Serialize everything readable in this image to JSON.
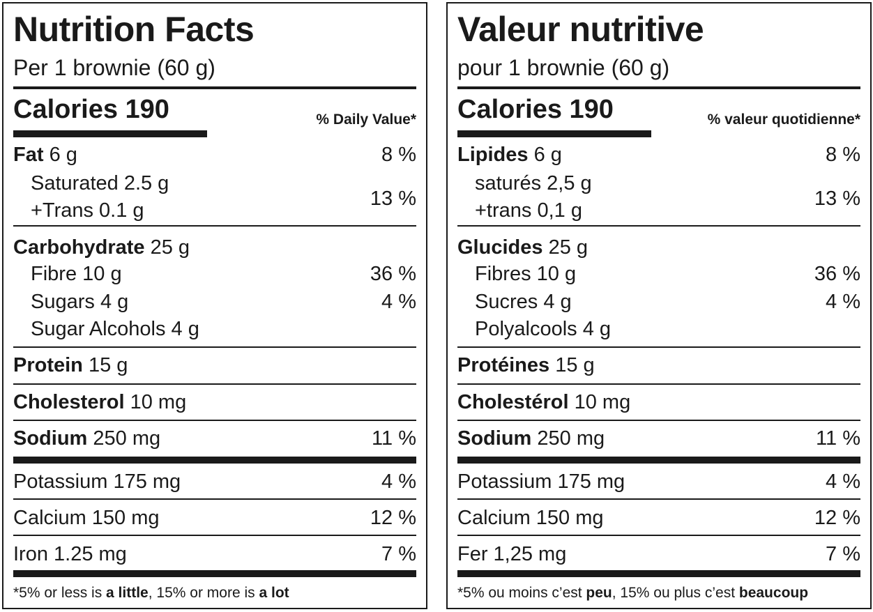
{
  "english": {
    "title": "Nutrition Facts",
    "serving": "Per 1 brownie (60 g)",
    "calories_label": "Calories",
    "calories_value": "190",
    "daily_value_header": "% Daily Value*",
    "fat_label": "Fat",
    "fat_amount": "6 g",
    "fat_dv": "8 %",
    "saturated": "Saturated 2.5 g",
    "trans": "+Trans 0.1 g",
    "sat_trans_dv": "13 %",
    "carb_label": "Carbohydrate",
    "carb_amount": "25 g",
    "fibre": "Fibre 10 g",
    "fibre_dv": "36 %",
    "sugars": "Sugars 4 g",
    "sugars_dv": "4 %",
    "sugar_alcohols": "Sugar Alcohols 4 g",
    "protein_label": "Protein",
    "protein_amount": "15 g",
    "cholesterol_label": "Cholesterol",
    "cholesterol_amount": "10 mg",
    "sodium_label": "Sodium",
    "sodium_amount": "250 mg",
    "sodium_dv": "11 %",
    "potassium": "Potassium 175 mg",
    "potassium_dv": "4 %",
    "calcium": "Calcium 150 mg",
    "calcium_dv": "12 %",
    "iron": "Iron 1.25 mg",
    "iron_dv": "7 %",
    "footnote_a": "*5% or less is ",
    "footnote_b": "a little",
    "footnote_c": ", 15% or more is ",
    "footnote_d": "a lot"
  },
  "french": {
    "title": "Valeur nutritive",
    "serving": "pour 1 brownie (60 g)",
    "calories_label": "Calories",
    "calories_value": "190",
    "daily_value_header": "% valeur quotidienne*",
    "fat_label": "Lipides",
    "fat_amount": "6 g",
    "fat_dv": "8 %",
    "saturated": "saturés 2,5 g",
    "trans": "+trans 0,1 g",
    "sat_trans_dv": "13 %",
    "carb_label": "Glucides",
    "carb_amount": "25 g",
    "fibre": "Fibres 10 g",
    "fibre_dv": "36 %",
    "sugars": "Sucres 4 g",
    "sugars_dv": "4 %",
    "sugar_alcohols": "Polyalcools 4 g",
    "protein_label": "Protéines",
    "protein_amount": "15 g",
    "cholesterol_label": "Cholestérol",
    "cholesterol_amount": "10 mg",
    "sodium_label": "Sodium",
    "sodium_amount": "250 mg",
    "sodium_dv": "11 %",
    "potassium": "Potassium 175 mg",
    "potassium_dv": "4 %",
    "calcium": "Calcium 150 mg",
    "calcium_dv": "12 %",
    "iron": "Fer 1,25 mg",
    "iron_dv": "7 %",
    "footnote_a": "*5% ou moins c’est ",
    "footnote_b": "peu",
    "footnote_c": ", 15% ou plus c’est ",
    "footnote_d": "beaucoup"
  }
}
